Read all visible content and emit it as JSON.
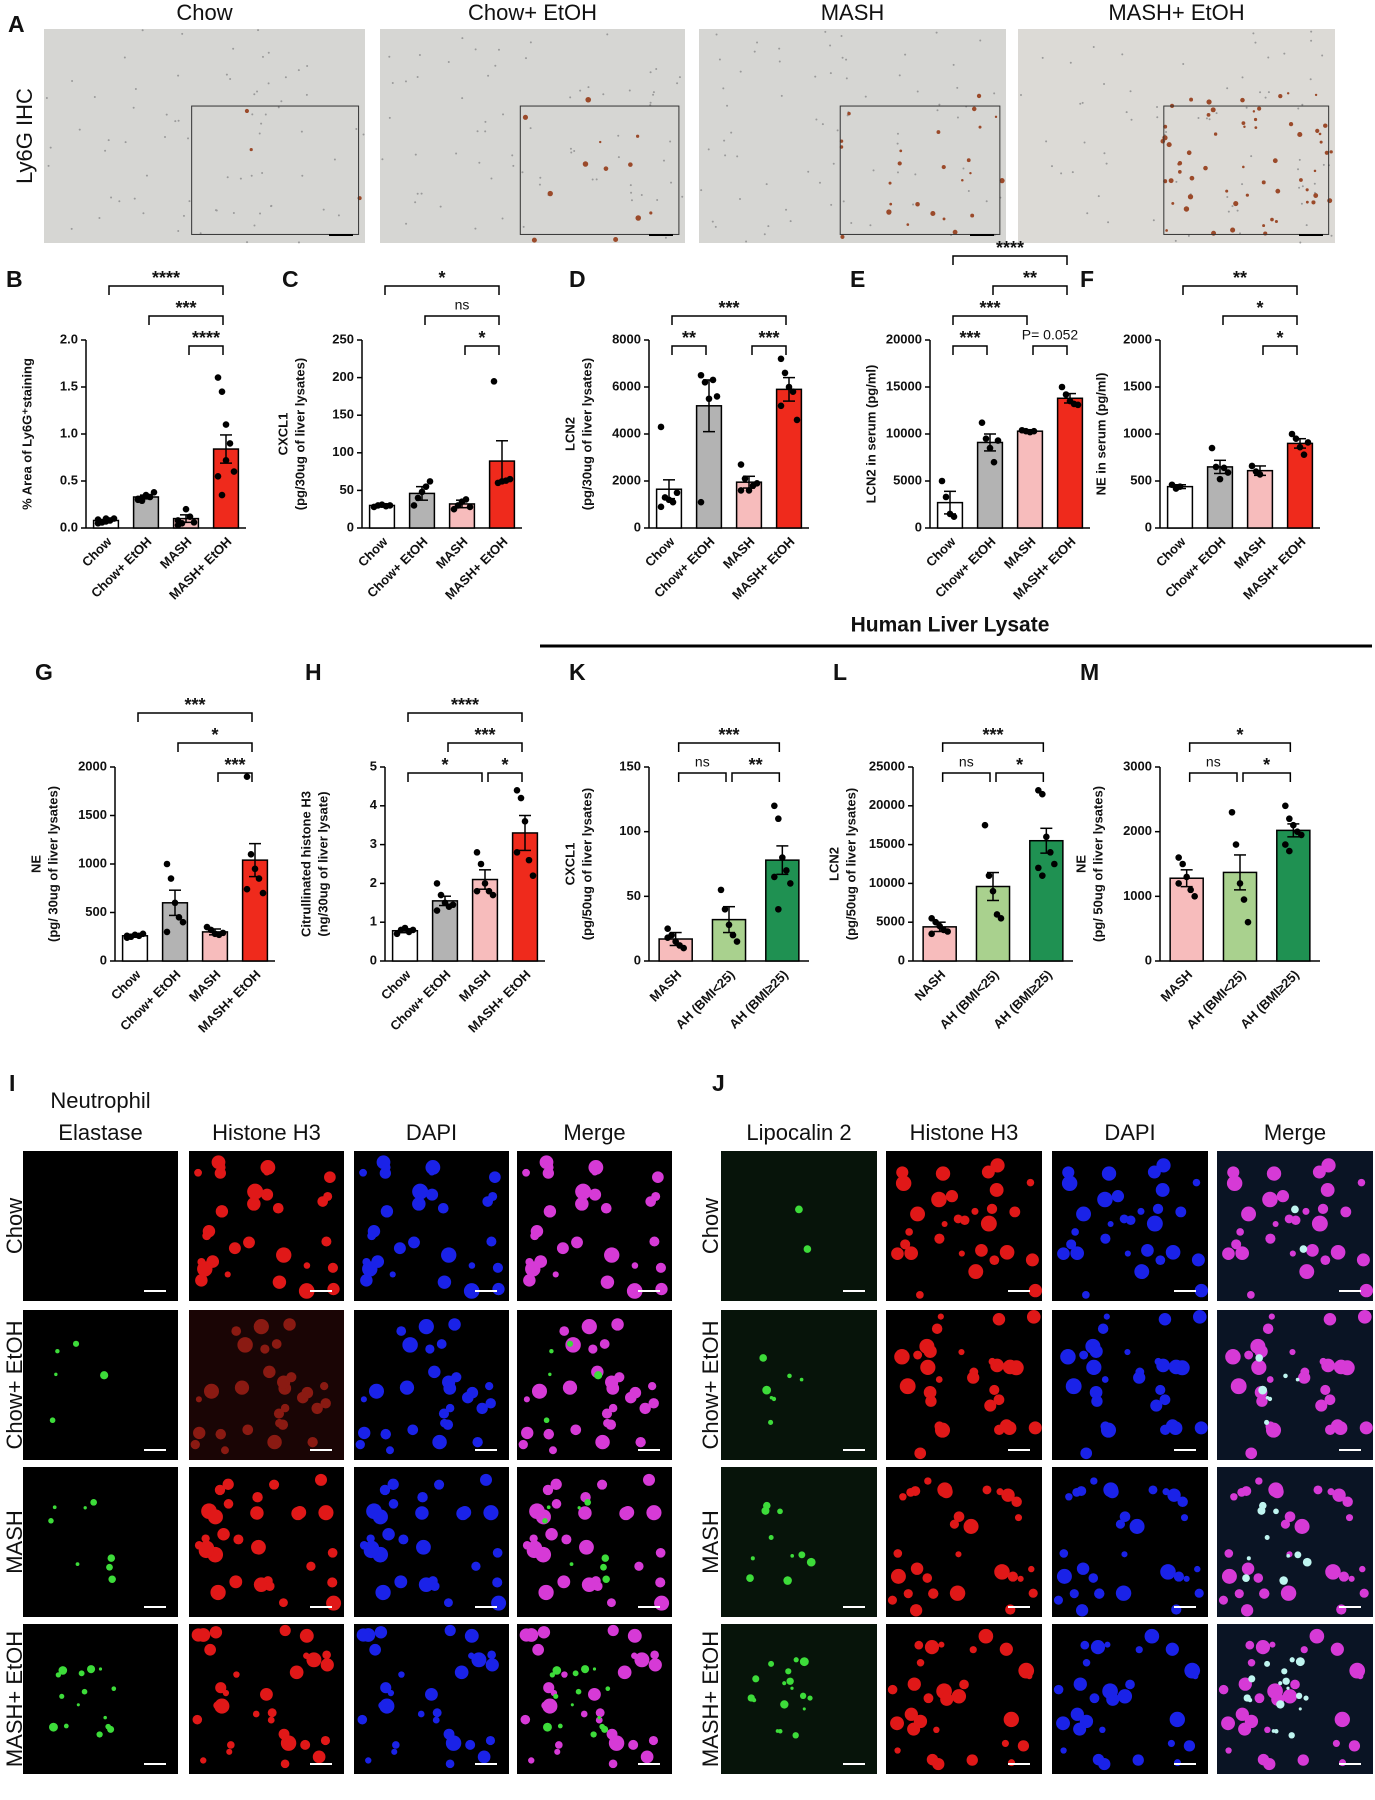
{
  "figure": {
    "panel_a": {
      "letter": "A",
      "side_label": "Ly6G IHC",
      "titles": [
        "Chow",
        "Chow+ EtOH",
        "MASH",
        "MASH+ EtOH"
      ]
    },
    "human_header": "Human Liver Lysate",
    "panel_i": {
      "letter": "I",
      "headers": [
        [
          "Neutrophil",
          "Elastase"
        ],
        [
          "Histone H3"
        ],
        [
          "DAPI"
        ],
        [
          "Merge"
        ]
      ],
      "rows": [
        "Chow",
        "Chow+ EtOH",
        "MASH",
        "MASH+ EtOH"
      ]
    },
    "panel_j": {
      "letter": "J",
      "headers": [
        [
          "Lipocalin 2"
        ],
        [
          "Histone H3"
        ],
        [
          "DAPI"
        ],
        [
          "Merge"
        ]
      ],
      "rows": [
        "Chow",
        "Chow+ EtOH",
        "MASH",
        "MASH+ EtOH"
      ]
    }
  },
  "chart_data": [
    {
      "type": "bar",
      "letter": "B",
      "ylabel": [
        "% Area of Ly6G⁺staining"
      ],
      "categories": [
        "Chow",
        "Chow+ EtOH",
        "MASH",
        "MASH+ EtOH"
      ],
      "colors": [
        "#ffffff",
        "#b3b3b3",
        "#f7bcbc",
        "#ef2a1c"
      ],
      "values": [
        0.08,
        0.33,
        0.1,
        0.84
      ],
      "errors": [
        0.01,
        0.02,
        0.04,
        0.15
      ],
      "points": [
        [
          0.05,
          0.06,
          0.07,
          0.08,
          0.1,
          0.09,
          0.06,
          0.1
        ],
        [
          0.3,
          0.32,
          0.35,
          0.33,
          0.38,
          0.31,
          0.29
        ],
        [
          0.03,
          0.05,
          0.2,
          0.12,
          0.06,
          0.08
        ],
        [
          1.6,
          1.45,
          1.1,
          0.9,
          0.6,
          0.55,
          0.35,
          0.72
        ]
      ],
      "ylim": [
        0,
        2.0
      ],
      "yticks": [
        {
          "value": 0,
          "label": "0.0"
        },
        0.5,
        {
          "value": 1.0,
          "label": "1.0"
        },
        1.5,
        {
          "value": 2.0,
          "label": "2.0"
        }
      ],
      "sig": [
        {
          "label": "****",
          "pair": [
            "Chow",
            "MASH+ EtOH"
          ]
        },
        {
          "label": "***",
          "pair": [
            "Chow+ EtOH",
            "MASH+ EtOH"
          ]
        },
        {
          "label": "****",
          "pair": [
            "MASH",
            "MASH+ EtOH"
          ]
        }
      ]
    },
    {
      "type": "bar",
      "letter": "C",
      "ylabel": [
        "CXCL1",
        "(pg/30ug of liver lysates)"
      ],
      "categories": [
        "Chow",
        "Chow+ EtOH",
        "MASH",
        "MASH+ EtOH"
      ],
      "colors": [
        "#ffffff",
        "#b3b3b3",
        "#f7bcbc",
        "#ef2a1c"
      ],
      "values": [
        30,
        46,
        32,
        89
      ],
      "errors": [
        2,
        9,
        5,
        27
      ],
      "points": [
        [
          28,
          30,
          31,
          29,
          30
        ],
        [
          30,
          40,
          48,
          55,
          62
        ],
        [
          25,
          30,
          35,
          38,
          28
        ],
        [
          195,
          60,
          62,
          63,
          65
        ]
      ],
      "ylim": [
        0,
        250
      ],
      "yticks": [
        0,
        50,
        100,
        150,
        200,
        250
      ],
      "sig": [
        {
          "label": "*",
          "pair": [
            "Chow",
            "MASH+ EtOH"
          ]
        },
        {
          "label": "ns",
          "pair": [
            "Chow+ EtOH",
            "MASH+ EtOH"
          ]
        },
        {
          "label": "*",
          "pair": [
            "MASH",
            "MASH+ EtOH"
          ]
        }
      ]
    },
    {
      "type": "bar",
      "letter": "D",
      "ylabel": [
        "LCN2",
        "(pg/30ug of liver lysates)"
      ],
      "categories": [
        "Chow",
        "Chow+ EtOH",
        "MASH",
        "MASH+ EtOH"
      ],
      "colors": [
        "#ffffff",
        "#b3b3b3",
        "#f7bcbc",
        "#ef2a1c"
      ],
      "values": [
        1650,
        5200,
        1950,
        5900
      ],
      "errors": [
        400,
        1100,
        250,
        500
      ],
      "points": [
        [
          4300,
          1300,
          1200,
          1100,
          1500,
          900
        ],
        [
          6500,
          6200,
          5500,
          6300,
          5600,
          1100
        ],
        [
          2700,
          2100,
          1600,
          1800,
          1900,
          1600
        ],
        [
          7200,
          6600,
          6000,
          5800,
          4600,
          5200
        ]
      ],
      "ylim": [
        0,
        8000
      ],
      "yticks": [
        0,
        2000,
        4000,
        6000,
        8000
      ],
      "sig": [
        {
          "label": "***",
          "pair": [
            "Chow",
            "MASH+ EtOH"
          ]
        },
        {
          "label": "**",
          "pair": [
            "Chow",
            "Chow+ EtOH"
          ]
        },
        {
          "label": "***",
          "pair": [
            "MASH",
            "MASH+ EtOH"
          ]
        }
      ]
    },
    {
      "type": "bar",
      "letter": "E",
      "ylabel": [
        "LCN2 in serum (pg/ml)"
      ],
      "categories": [
        "Chow",
        "Chow+ EtOH",
        "MASH",
        "MASH+ EtOH"
      ],
      "colors": [
        "#ffffff",
        "#b3b3b3",
        "#f7bcbc",
        "#ef2a1c"
      ],
      "values": [
        2700,
        9100,
        10300,
        13800
      ],
      "errors": [
        1200,
        900,
        150,
        500
      ],
      "points": [
        [
          5000,
          3300,
          1500,
          1200
        ],
        [
          11200,
          9500,
          8500,
          7000,
          9300
        ],
        [
          10400,
          10300,
          10200,
          10300
        ],
        [
          15000,
          14200,
          13500,
          13200,
          13100
        ]
      ],
      "ylim": [
        0,
        20000
      ],
      "yticks": [
        0,
        5000,
        10000,
        15000,
        20000
      ],
      "sig": [
        {
          "label": "****",
          "pair": [
            "Chow",
            "MASH+ EtOH"
          ]
        },
        {
          "label": "**",
          "pair": [
            "Chow+ EtOH",
            "MASH+ EtOH"
          ]
        },
        {
          "label": "***",
          "pair": [
            "Chow",
            "MASH"
          ]
        },
        {
          "label": "***",
          "pair": [
            "Chow",
            "Chow+ EtOH"
          ]
        },
        {
          "label": "P= 0.052",
          "pair": [
            "MASH",
            "MASH+ EtOH"
          ]
        }
      ]
    },
    {
      "type": "bar",
      "letter": "F",
      "ylabel": [
        "NE in serum (pg/ml)"
      ],
      "categories": [
        "Chow",
        "Chow+ EtOH",
        "MASH",
        "MASH+ EtOH"
      ],
      "colors": [
        "#ffffff",
        "#b3b3b3",
        "#f7bcbc",
        "#ef2a1c"
      ],
      "values": [
        440,
        650,
        610,
        900
      ],
      "errors": [
        20,
        70,
        50,
        50
      ],
      "points": [
        [
          460,
          420,
          440
        ],
        [
          850,
          650,
          520,
          640,
          590
        ],
        [
          660,
          600,
          570
        ],
        [
          1000,
          950,
          860,
          780,
          910
        ]
      ],
      "ylim": [
        0,
        2000
      ],
      "yticks": [
        0,
        500,
        1000,
        1500,
        2000
      ],
      "sig": [
        {
          "label": "**",
          "pair": [
            "Chow",
            "MASH+ EtOH"
          ]
        },
        {
          "label": "*",
          "pair": [
            "Chow+ EtOH",
            "MASH+ EtOH"
          ]
        },
        {
          "label": "*",
          "pair": [
            "MASH",
            "MASH+ EtOH"
          ]
        }
      ]
    },
    {
      "type": "bar",
      "letter": "G",
      "ylabel": [
        "NE",
        "(pg/ 30ug of liver lysates)"
      ],
      "categories": [
        "Chow",
        "Chow+ EtOH",
        "MASH",
        "MASH+ EtOH"
      ],
      "colors": [
        "#ffffff",
        "#b3b3b3",
        "#f7bcbc",
        "#ef2a1c"
      ],
      "values": [
        260,
        600,
        300,
        1040
      ],
      "errors": [
        15,
        130,
        30,
        170
      ],
      "points": [
        [
          240,
          250,
          270,
          260,
          280,
          260
        ],
        [
          1000,
          850,
          600,
          450,
          400,
          300
        ],
        [
          350,
          320,
          280,
          270,
          290
        ],
        [
          1900,
          1100,
          950,
          850,
          700,
          740
        ]
      ],
      "ylim": [
        0,
        2000
      ],
      "yticks": [
        0,
        500,
        1000,
        1500,
        2000
      ],
      "sig": [
        {
          "label": "***",
          "pair": [
            "Chow",
            "MASH+ EtOH"
          ]
        },
        {
          "label": "*",
          "pair": [
            "Chow+ EtOH",
            "MASH+ EtOH"
          ]
        },
        {
          "label": "***",
          "pair": [
            "MASH",
            "MASH+ EtOH"
          ]
        }
      ]
    },
    {
      "type": "bar",
      "letter": "H",
      "ylabel": [
        "Citrullinated histone H3",
        "(ng/30ug of liver lysate)"
      ],
      "categories": [
        "Chow",
        "Chow+ EtOH",
        "MASH",
        "MASH+ EtOH"
      ],
      "colors": [
        "#ffffff",
        "#b3b3b3",
        "#f7bcbc",
        "#ef2a1c"
      ],
      "values": [
        0.78,
        1.55,
        2.1,
        3.3
      ],
      "errors": [
        0.05,
        0.12,
        0.25,
        0.45
      ],
      "points": [
        [
          0.7,
          0.8,
          0.85,
          0.75,
          0.8
        ],
        [
          2.0,
          1.7,
          1.5,
          1.4,
          1.45,
          1.3
        ],
        [
          2.8,
          2.5,
          2.0,
          1.8,
          1.7,
          1.8
        ],
        [
          4.4,
          4.2,
          3.6,
          2.6,
          2.2,
          2.8
        ]
      ],
      "ylim": [
        0,
        5
      ],
      "yticks": [
        0,
        1,
        2,
        3,
        4,
        5
      ],
      "sig": [
        {
          "label": "****",
          "pair": [
            "Chow",
            "MASH+ EtOH"
          ]
        },
        {
          "label": "***",
          "pair": [
            "Chow+ EtOH",
            "MASH+ EtOH"
          ]
        },
        {
          "label": "*",
          "pair": [
            "Chow",
            "MASH"
          ]
        },
        {
          "label": "*",
          "pair": [
            "MASH",
            "MASH+ EtOH"
          ]
        }
      ]
    },
    {
      "type": "bar",
      "letter": "K",
      "ylabel": [
        "CXCL1",
        "(pg/50ug of liver lysates)"
      ],
      "categories": [
        "MASH",
        "AH (BMI<25)",
        "AH (BMI≥25)"
      ],
      "colors": [
        "#f7bcbc",
        "#a9d18e",
        "#1f9152"
      ],
      "values": [
        17,
        32,
        78
      ],
      "errors": [
        5,
        10,
        11
      ],
      "points": [
        [
          25,
          20,
          15,
          12,
          10,
          18
        ],
        [
          55,
          40,
          28,
          20,
          15
        ],
        [
          120,
          110,
          80,
          70,
          60,
          65,
          40
        ]
      ],
      "ylim": [
        0,
        150
      ],
      "yticks": [
        0,
        50,
        100,
        150
      ],
      "sig": [
        {
          "label": "***",
          "pair": [
            "MASH",
            "AH (BMI≥25)"
          ]
        },
        {
          "label": "ns",
          "pair": [
            "MASH",
            "AH (BMI<25)"
          ]
        },
        {
          "label": "**",
          "pair": [
            "AH (BMI<25)",
            "AH (BMI≥25)"
          ]
        }
      ]
    },
    {
      "type": "bar",
      "letter": "L",
      "ylabel": [
        "LCN2",
        "(pg/50ug of liver lysates)"
      ],
      "categories": [
        "NASH",
        "AH (BMI<25)",
        "AH (BMI≥25)"
      ],
      "colors": [
        "#f7bcbc",
        "#a9d18e",
        "#1f9152"
      ],
      "values": [
        4400,
        9600,
        15500
      ],
      "errors": [
        600,
        1800,
        1600
      ],
      "points": [
        [
          5500,
          5000,
          4500,
          4000,
          3800,
          3500
        ],
        [
          17500,
          11000,
          9000,
          6000,
          5500
        ],
        [
          22000,
          21500,
          16000,
          14000,
          12500,
          12000,
          11000
        ]
      ],
      "ylim": [
        0,
        25000
      ],
      "yticks": [
        0,
        5000,
        10000,
        15000,
        20000,
        25000
      ],
      "sig": [
        {
          "label": "***",
          "pair": [
            "NASH",
            "AH (BMI≥25)"
          ]
        },
        {
          "label": "ns",
          "pair": [
            "NASH",
            "AH (BMI<25)"
          ]
        },
        {
          "label": "*",
          "pair": [
            "AH (BMI<25)",
            "AH (BMI≥25)"
          ]
        }
      ]
    },
    {
      "type": "bar",
      "letter": "M",
      "ylabel": [
        "NE",
        "(pg/ 50ug of liver lysates)"
      ],
      "categories": [
        "MASH",
        "AH (BMI<25)",
        "AH (BMI≥25)"
      ],
      "colors": [
        "#f7bcbc",
        "#a9d18e",
        "#1f9152"
      ],
      "values": [
        1280,
        1370,
        2020
      ],
      "errors": [
        130,
        270,
        100
      ],
      "points": [
        [
          1600,
          1500,
          1300,
          1100,
          1000,
          1200
        ],
        [
          2300,
          1800,
          1200,
          950,
          600
        ],
        [
          2400,
          2200,
          2100,
          2000,
          1950,
          1800,
          1700
        ]
      ],
      "ylim": [
        0,
        3000
      ],
      "yticks": [
        0,
        1000,
        2000,
        3000
      ],
      "sig": [
        {
          "label": "*",
          "pair": [
            "MASH",
            "AH (BMI≥25)"
          ]
        },
        {
          "label": "ns",
          "pair": [
            "MASH",
            "AH (BMI<25)"
          ]
        },
        {
          "label": "*",
          "pair": [
            "AH (BMI<25)",
            "AH (BMI≥25)"
          ]
        }
      ]
    }
  ]
}
